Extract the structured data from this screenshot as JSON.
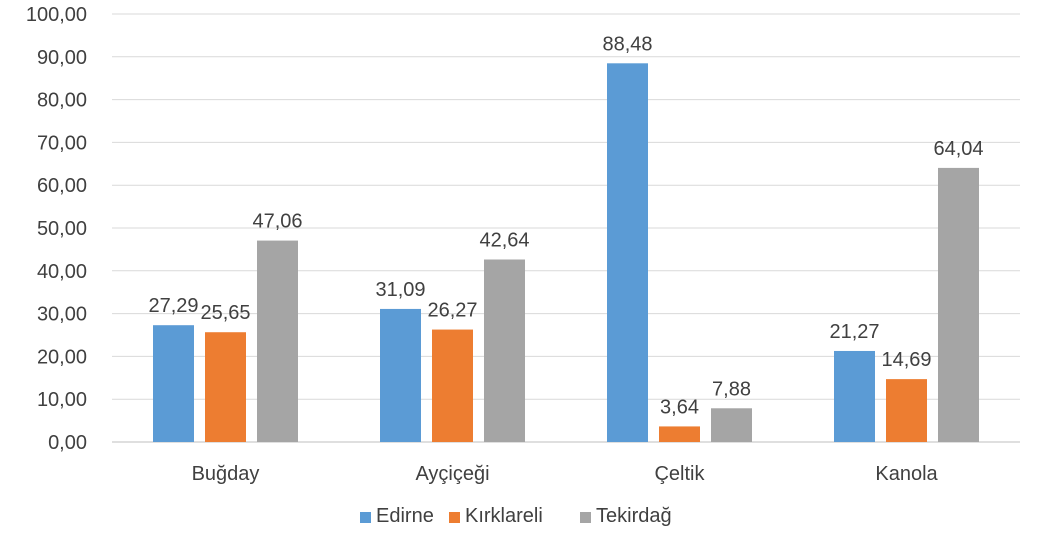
{
  "chart_data": {
    "type": "bar",
    "title": "",
    "xlabel": "",
    "ylabel": "",
    "categories": [
      "Buğday",
      "Ayçiçeği",
      "Çeltik",
      "Kanola"
    ],
    "series": [
      {
        "name": "Edirne",
        "color": "#5b9bd5",
        "values": [
          27.29,
          31.09,
          88.48,
          21.27
        ],
        "labels": [
          "27,29",
          "31,09",
          "88,48",
          "21,27"
        ]
      },
      {
        "name": "Kırklareli",
        "color": "#ed7d31",
        "values": [
          25.65,
          26.27,
          3.64,
          14.69
        ],
        "labels": [
          "25,65",
          "26,27",
          "3,64",
          "14,69"
        ]
      },
      {
        "name": "Tekirdağ",
        "color": "#a5a5a5",
        "values": [
          47.06,
          42.64,
          7.88,
          64.04
        ],
        "labels": [
          "47,06",
          "42,64",
          "7,88",
          "64,04"
        ]
      }
    ],
    "ylim": [
      0,
      100
    ],
    "yticks": [
      "0,00",
      "10,00",
      "20,00",
      "30,00",
      "40,00",
      "50,00",
      "60,00",
      "70,00",
      "80,00",
      "90,00",
      "100,00"
    ],
    "grid": true,
    "legend_position": "bottom"
  }
}
